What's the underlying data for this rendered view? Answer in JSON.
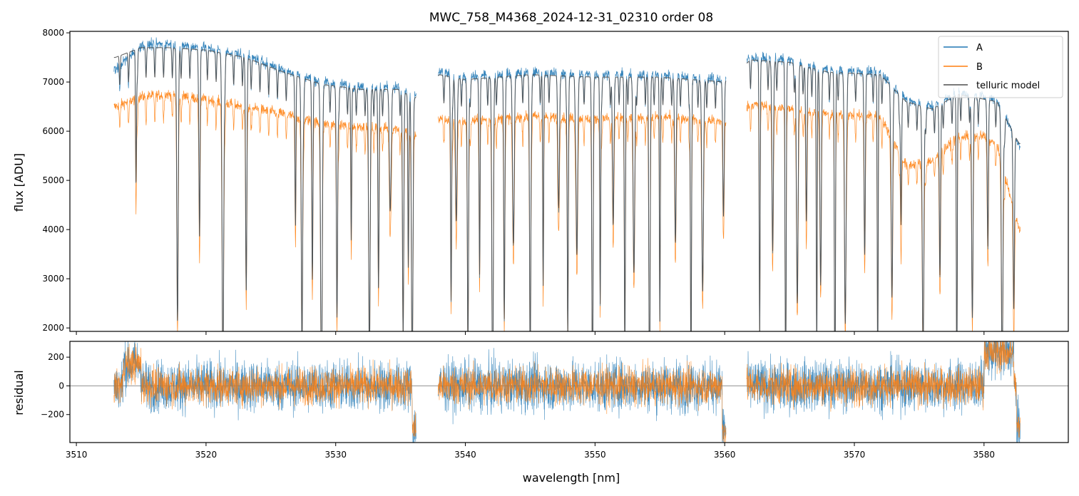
{
  "chart_data": [
    {
      "type": "line",
      "title": "MWC_758_M4368_2024-12-31_02310  order 08",
      "xlabel": "",
      "ylabel": "flux [ADU]",
      "xlim": [
        3509.5,
        3586.5
      ],
      "ylim": [
        1930,
        8030
      ],
      "yticks": [
        2000,
        3000,
        4000,
        5000,
        6000,
        7000,
        8000
      ],
      "ytick_labels": [
        "2000",
        "3000",
        "4000",
        "5000",
        "6000",
        "7000",
        "8000"
      ],
      "legend": {
        "placement": "top-right",
        "entries": [
          "A",
          "B",
          "telluric model"
        ]
      },
      "segments": [
        [
          3512.9,
          3536.2
        ],
        [
          3537.9,
          3560.1
        ],
        [
          3561.7,
          3582.8
        ]
      ],
      "series": [
        {
          "name": "A",
          "color": "#1f77b4",
          "x": [
            3513,
            3515,
            3517,
            3520,
            3523,
            3526,
            3529,
            3532,
            3535,
            3536,
            3538,
            3540,
            3545,
            3550,
            3555,
            3560,
            3562,
            3565,
            3568,
            3572,
            3574,
            3576,
            3578,
            3580,
            3581,
            3582.7
          ],
          "values": [
            7250,
            7750,
            7780,
            7700,
            7550,
            7250,
            7000,
            6900,
            6900,
            6700,
            7200,
            7100,
            7200,
            7150,
            7150,
            7050,
            7500,
            7450,
            7250,
            7200,
            6650,
            6500,
            6800,
            6700,
            6650,
            5700
          ]
        },
        {
          "name": "B",
          "color": "#ff7f0e",
          "x": [
            3513,
            3515,
            3517,
            3520,
            3523,
            3526,
            3529,
            3532,
            3535,
            3536,
            3538,
            3540,
            3545,
            3550,
            3555,
            3560,
            3562,
            3565,
            3568,
            3572,
            3574,
            3576,
            3578,
            3580,
            3581,
            3582.7
          ],
          "values": [
            6500,
            6700,
            6750,
            6650,
            6500,
            6350,
            6150,
            6100,
            6050,
            5900,
            6250,
            6200,
            6300,
            6250,
            6300,
            6200,
            6550,
            6450,
            6350,
            6300,
            5300,
            5400,
            5900,
            5900,
            5700,
            4000
          ]
        },
        {
          "name": "telluric model",
          "color": "#4d4d4d",
          "x": [
            3513,
            3515,
            3517,
            3520,
            3523,
            3526,
            3529,
            3532,
            3535,
            3536,
            3538,
            3540,
            3545,
            3550,
            3555,
            3560,
            3562,
            3565,
            3568,
            3572,
            3574,
            3576,
            3578,
            3580,
            3581,
            3582.7
          ],
          "values": [
            7500,
            7700,
            7700,
            7650,
            7500,
            7200,
            6950,
            6850,
            6850,
            6650,
            7150,
            7050,
            7150,
            7100,
            7100,
            7000,
            7450,
            7400,
            7200,
            7150,
            6600,
            6450,
            6750,
            6650,
            6600,
            5750
          ]
        }
      ],
      "absorption_lines_nm": [
        3514.6,
        3517.8,
        3519.5,
        3521.3,
        3523.1,
        3526.9,
        3527.4,
        3528.2,
        3528.9,
        3530.1,
        3531.2,
        3532.6,
        3533.3,
        3534.2,
        3535.2,
        3535.6,
        3535.9,
        3538.9,
        3539.3,
        3540.2,
        3541.1,
        3542.1,
        3543.0,
        3543.7,
        3545.0,
        3546.0,
        3547.2,
        3547.9,
        3548.6,
        3549.8,
        3550.4,
        3551.4,
        3552.3,
        3553.0,
        3554.2,
        3555.0,
        3556.2,
        3557.4,
        3558.3,
        3559.9,
        3562.7,
        3563.7,
        3564.7,
        3565.6,
        3566.3,
        3567.1,
        3567.4,
        3568.5,
        3569.3,
        3570.8,
        3571.8,
        3572.9,
        3573.6,
        3575.3,
        3576.6,
        3577.9,
        3579.1,
        3580.3,
        3581.4,
        3582.3
      ]
    },
    {
      "type": "line",
      "title": "",
      "xlabel": "wavelength [nm]",
      "ylabel": "residual",
      "xlim": [
        3509.5,
        3586.5
      ],
      "ylim": [
        -395,
        310
      ],
      "xticks": [
        3510,
        3520,
        3530,
        3540,
        3550,
        3560,
        3570,
        3580
      ],
      "xtick_labels": [
        "3510",
        "3520",
        "3530",
        "3540",
        "3550",
        "3560",
        "3570",
        "3580"
      ],
      "yticks": [
        -200,
        0,
        200
      ],
      "ytick_labels": [
        "−200",
        "0",
        "200"
      ],
      "zero_line": 0,
      "series": [
        {
          "name": "A",
          "color": "#1f77b4",
          "noise_amplitude": 150
        },
        {
          "name": "B",
          "color": "#ff7f0e",
          "noise_amplitude": 110
        }
      ]
    }
  ]
}
